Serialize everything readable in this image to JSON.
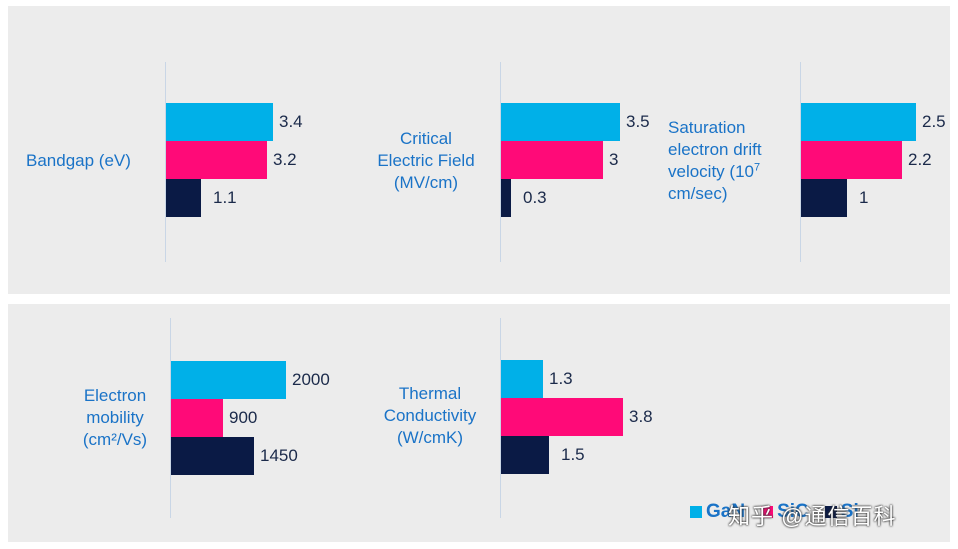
{
  "chart_data": {
    "type": "bar",
    "orientation": "horizontal",
    "title": "",
    "series": [
      {
        "name": "GaN",
        "color": "#00b0e8"
      },
      {
        "name": "SiC",
        "color": "#ff0a78"
      },
      {
        "name": "Si",
        "color": "#0a1a45"
      }
    ],
    "panels": [
      {
        "label": "Bandgap (eV)",
        "values": [
          3.4,
          3.2,
          1.1
        ],
        "value_labels": [
          "3.4",
          "3.2",
          "1.1"
        ],
        "max": 3.5
      },
      {
        "label": "Critical Electric Field (MV/cm)",
        "values": [
          3.5,
          3,
          0.3
        ],
        "value_labels": [
          "3.5",
          "3",
          "0.3"
        ],
        "max": 3.5
      },
      {
        "label": "Saturation electron drift velocity (10^7 cm/sec)",
        "values": [
          2.5,
          2.2,
          1
        ],
        "value_labels": [
          "2.5",
          "2.2",
          "1"
        ],
        "max": 2.5
      },
      {
        "label": "Electron mobility (cm²/Vs)",
        "values": [
          2000,
          900,
          1450
        ],
        "value_labels": [
          "2000",
          "900",
          "1450"
        ],
        "max": 2000
      },
      {
        "label": "Thermal Conductivity (W/cmK)",
        "values": [
          1.3,
          3.8,
          1.5
        ],
        "value_labels": [
          "1.3",
          "3.8",
          "1.5"
        ],
        "max": 3.8
      }
    ]
  },
  "labels": {
    "bandgap": "Bandgap (eV)",
    "critical_line1": "Critical",
    "critical_line2": "Electric Field",
    "critical_line3": "(MV/cm)",
    "saturation_line1": "Saturation",
    "saturation_line2": "electron drift",
    "saturation_line3a": "velocity (10",
    "saturation_line3_sup": "7",
    "saturation_line4": "cm/sec)",
    "mobility_line1": "Electron",
    "mobility_line2": "mobility",
    "mobility_line3": "(cm²/Vs)",
    "thermal_line1": "Thermal",
    "thermal_line2": "Conductivity",
    "thermal_line3": "(W/cmK)"
  },
  "legend": {
    "items": [
      {
        "name": "GaN",
        "color": "#00b0e8"
      },
      {
        "name": "SiC",
        "color": "#ff0a78"
      },
      {
        "name": "Si",
        "color": "#0a1a45"
      }
    ]
  },
  "watermark": "知乎 @通信百科"
}
